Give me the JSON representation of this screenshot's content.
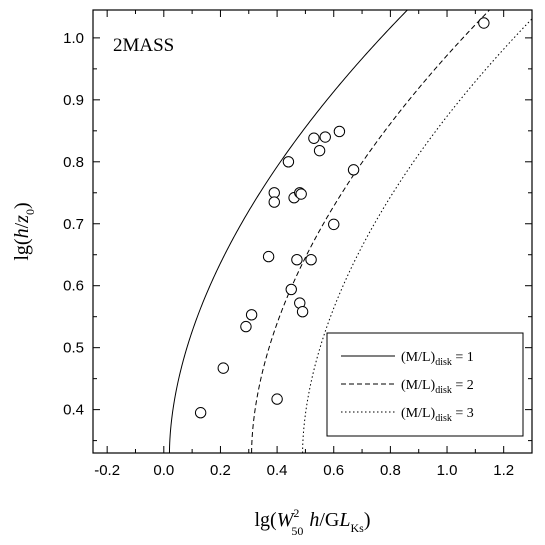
{
  "chart_data": {
    "type": "scatter",
    "panel_label": "2MASS",
    "xlabel": {
      "pre": "lg(",
      "W": "W",
      "sub50": "50",
      "sup2": "2",
      "h": "h",
      "slash": "/G",
      "L": "L",
      "subKs": "Ks",
      "close": ")"
    },
    "ylabel": {
      "pre": "lg(",
      "h": "h",
      "slash": "/",
      "z": "z",
      "sub0": "0",
      "close": ")"
    },
    "xlim": [
      -0.25,
      1.3
    ],
    "ylim": [
      0.33,
      1.045
    ],
    "xticks": [
      "-0.2",
      "0.0",
      "0.2",
      "0.4",
      "0.6",
      "0.8",
      "1.0",
      "1.2"
    ],
    "yticks": [
      "0.4",
      "0.5",
      "0.6",
      "0.7",
      "0.8",
      "0.9",
      "1.0"
    ],
    "points": [
      {
        "x": 0.13,
        "y": 0.395
      },
      {
        "x": 0.21,
        "y": 0.467
      },
      {
        "x": 0.29,
        "y": 0.534
      },
      {
        "x": 0.31,
        "y": 0.553
      },
      {
        "x": 0.37,
        "y": 0.647
      },
      {
        "x": 0.39,
        "y": 0.75
      },
      {
        "x": 0.39,
        "y": 0.735
      },
      {
        "x": 0.4,
        "y": 0.417
      },
      {
        "x": 0.44,
        "y": 0.8
      },
      {
        "x": 0.45,
        "y": 0.594
      },
      {
        "x": 0.46,
        "y": 0.742
      },
      {
        "x": 0.47,
        "y": 0.642
      },
      {
        "x": 0.48,
        "y": 0.75
      },
      {
        "x": 0.485,
        "y": 0.748
      },
      {
        "x": 0.48,
        "y": 0.572
      },
      {
        "x": 0.49,
        "y": 0.558
      },
      {
        "x": 0.52,
        "y": 0.642
      },
      {
        "x": 0.53,
        "y": 0.838
      },
      {
        "x": 0.55,
        "y": 0.818
      },
      {
        "x": 0.57,
        "y": 0.84
      },
      {
        "x": 0.6,
        "y": 0.699
      },
      {
        "x": 0.62,
        "y": 0.849
      },
      {
        "x": 0.67,
        "y": 0.787
      },
      {
        "x": 1.13,
        "y": 1.024
      }
    ],
    "series": [
      {
        "name": "(M/L)disk = 1",
        "label_pre": "(M/L)",
        "label_sub": "disk",
        "label_post": " = 1",
        "style": "solid",
        "x0": 0.02
      },
      {
        "name": "(M/L)disk = 2",
        "label_pre": "(M/L)",
        "label_sub": "disk",
        "label_post": " = 2",
        "style": "dashed",
        "x0": 0.31
      },
      {
        "name": "(M/L)disk = 3",
        "label_pre": "(M/L)",
        "label_sub": "disk",
        "label_post": " = 3",
        "style": "dotted",
        "x0": 0.49
      }
    ],
    "legend_position": "bottom-right",
    "grid": false
  }
}
